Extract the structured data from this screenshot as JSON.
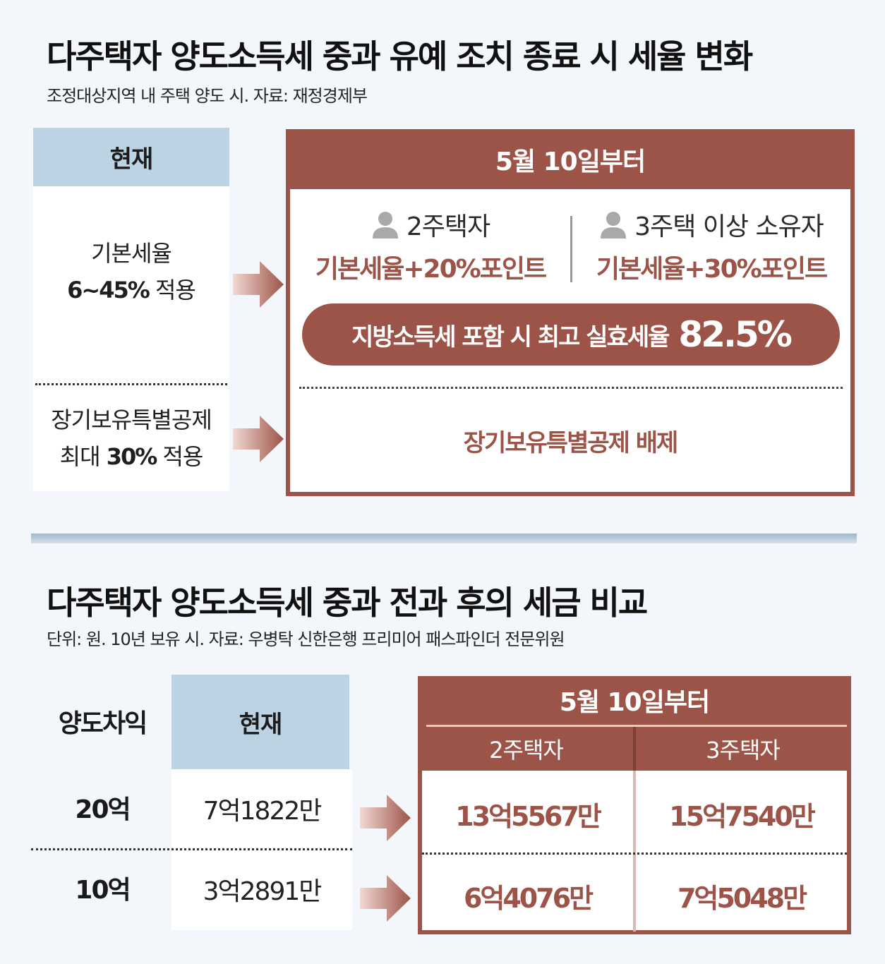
{
  "section1": {
    "title": "다주택자 양도소득세 중과 유예 조치 종료 시 세율 변화",
    "subtitle": "조정대상지역 내 주택 양도 시. 자료: 재정경제부",
    "current": {
      "header": "현재",
      "basic_rate_label": "기본세율",
      "basic_rate_value": "6~45%",
      "basic_rate_suffix": " 적용",
      "ltd_label": "장기보유특별공제",
      "ltd_prefix": "최대 ",
      "ltd_value": "30%",
      "ltd_suffix": " 적용"
    },
    "future": {
      "header": "5월 10일부터",
      "two_home_label": "2주택자",
      "two_home_rate": "기본세율+20%포인트",
      "three_home_label": "3주택 이상 소유자",
      "three_home_rate": "기본세율+30%포인트",
      "pill_text": "지방소득세 포함 시 최고 실효세율",
      "pill_value": "82.5%",
      "ltd_result": "장기보유특별공제 배제"
    },
    "icons": [
      "person-icon",
      "arrow-right-icon"
    ]
  },
  "section2": {
    "title": "다주택자 양도소득세 중과 전과 후의 세금 비교",
    "subtitle": "단위: 원. 10년 보유 시. 자료: 우병탁 신한은행 프리미어 패스파인더 전문위원",
    "col_gain": "양도차익",
    "col_current": "현재",
    "col_future": "5월 10일부터",
    "col_two_home": "2주택자",
    "col_three_home": "3주택자",
    "rows": [
      {
        "gain": "20억",
        "current": "7억1822만",
        "two_home": "13억5567만",
        "three_home": "15억7540만"
      },
      {
        "gain": "10억",
        "current": "3억2891만",
        "two_home": "6억4076만",
        "three_home": "7억5048만"
      }
    ]
  },
  "colors": {
    "accent_red": "#9d5448",
    "header_blue": "#bcd3e4",
    "background": "#f3f7fb"
  }
}
